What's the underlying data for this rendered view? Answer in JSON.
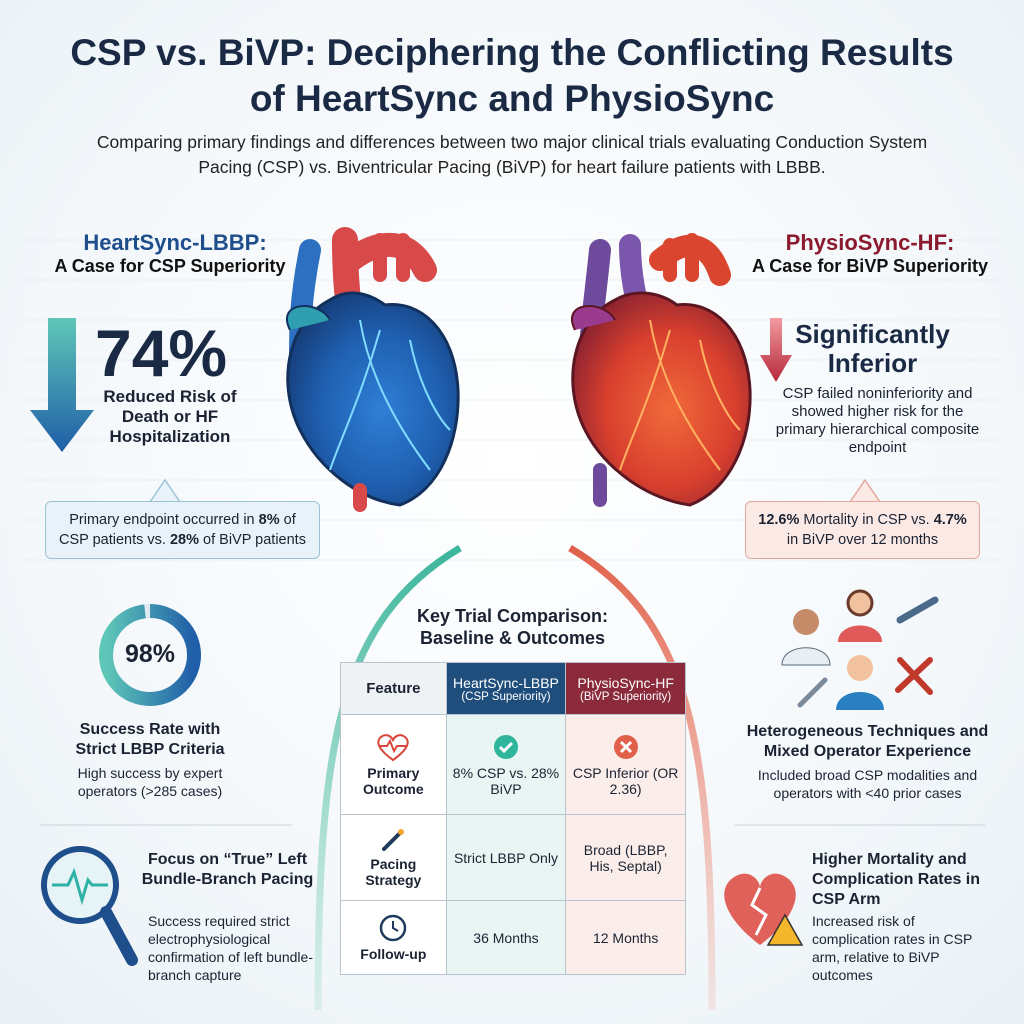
{
  "header": {
    "title": "CSP vs. BiVP: Deciphering the Conflicting Results of HeartSync and PhysioSync",
    "subtitle": "Comparing primary findings and differences between two major clinical trials evaluating Conduction System Pacing (CSP) vs. Biventricular Pacing (BiVP) for heart failure patients with LBBB."
  },
  "left": {
    "trial": "HeartSync-LBBP:",
    "claim": "A Case for CSP Superiority",
    "stat": "74%",
    "stat_label": "Reduced Risk of Death or HF Hospitalization",
    "callout": [
      "Primary endpoint occurred in",
      "8%",
      "of CSP patients vs.",
      "28%",
      "of BiVP patients"
    ],
    "success": {
      "value": 98,
      "label": "98%"
    },
    "success_title": "Success Rate with Strict LBBP Criteria",
    "success_text": "High success by expert operators (>285 cases)",
    "focus_title": "Focus on “True” Left Bundle-Branch Pacing",
    "focus_text": "Success required strict electrophysiological confirmation of left bundle-branch capture"
  },
  "right": {
    "trial": "PhysioSync-HF:",
    "claim": "A Case for BiVP Superiority",
    "stat": "Significantly Inferior",
    "stat_label": "CSP failed noninferiority and showed higher risk for the primary hierarchical composite endpoint",
    "callout": [
      "12.6%",
      "Mortality in CSP vs.",
      "4.7%",
      "in BiVP over 12 months"
    ],
    "tech_title": "Heterogeneous Techniques and Mixed Operator Experience",
    "tech_text": "Included broad CSP modalities and operators with <40 prior cases",
    "risk_title": "Higher Mortality and Complication Rates in CSP Arm",
    "risk_text": "Increased risk of complication rates in CSP arm, relative to BiVP outcomes"
  },
  "table": {
    "title": "Key Trial Comparison: Baseline & Outcomes",
    "columns": [
      {
        "name": "Feature"
      },
      {
        "name": "HeartSync-LBBP",
        "note": "(CSP Superiority)"
      },
      {
        "name": "PhysioSync-HF",
        "note": "(BiVP Superiority)"
      }
    ],
    "rows": [
      [
        "Primary Outcome",
        "8% CSP vs. 28% BiVP",
        "CSP Inferior (OR 2.36)"
      ],
      [
        "Pacing Strategy",
        "Strict LBBP Only",
        "Broad (LBBP, His, Septal)"
      ],
      [
        "Follow-up",
        "36 Months",
        "12 Months"
      ]
    ]
  }
}
